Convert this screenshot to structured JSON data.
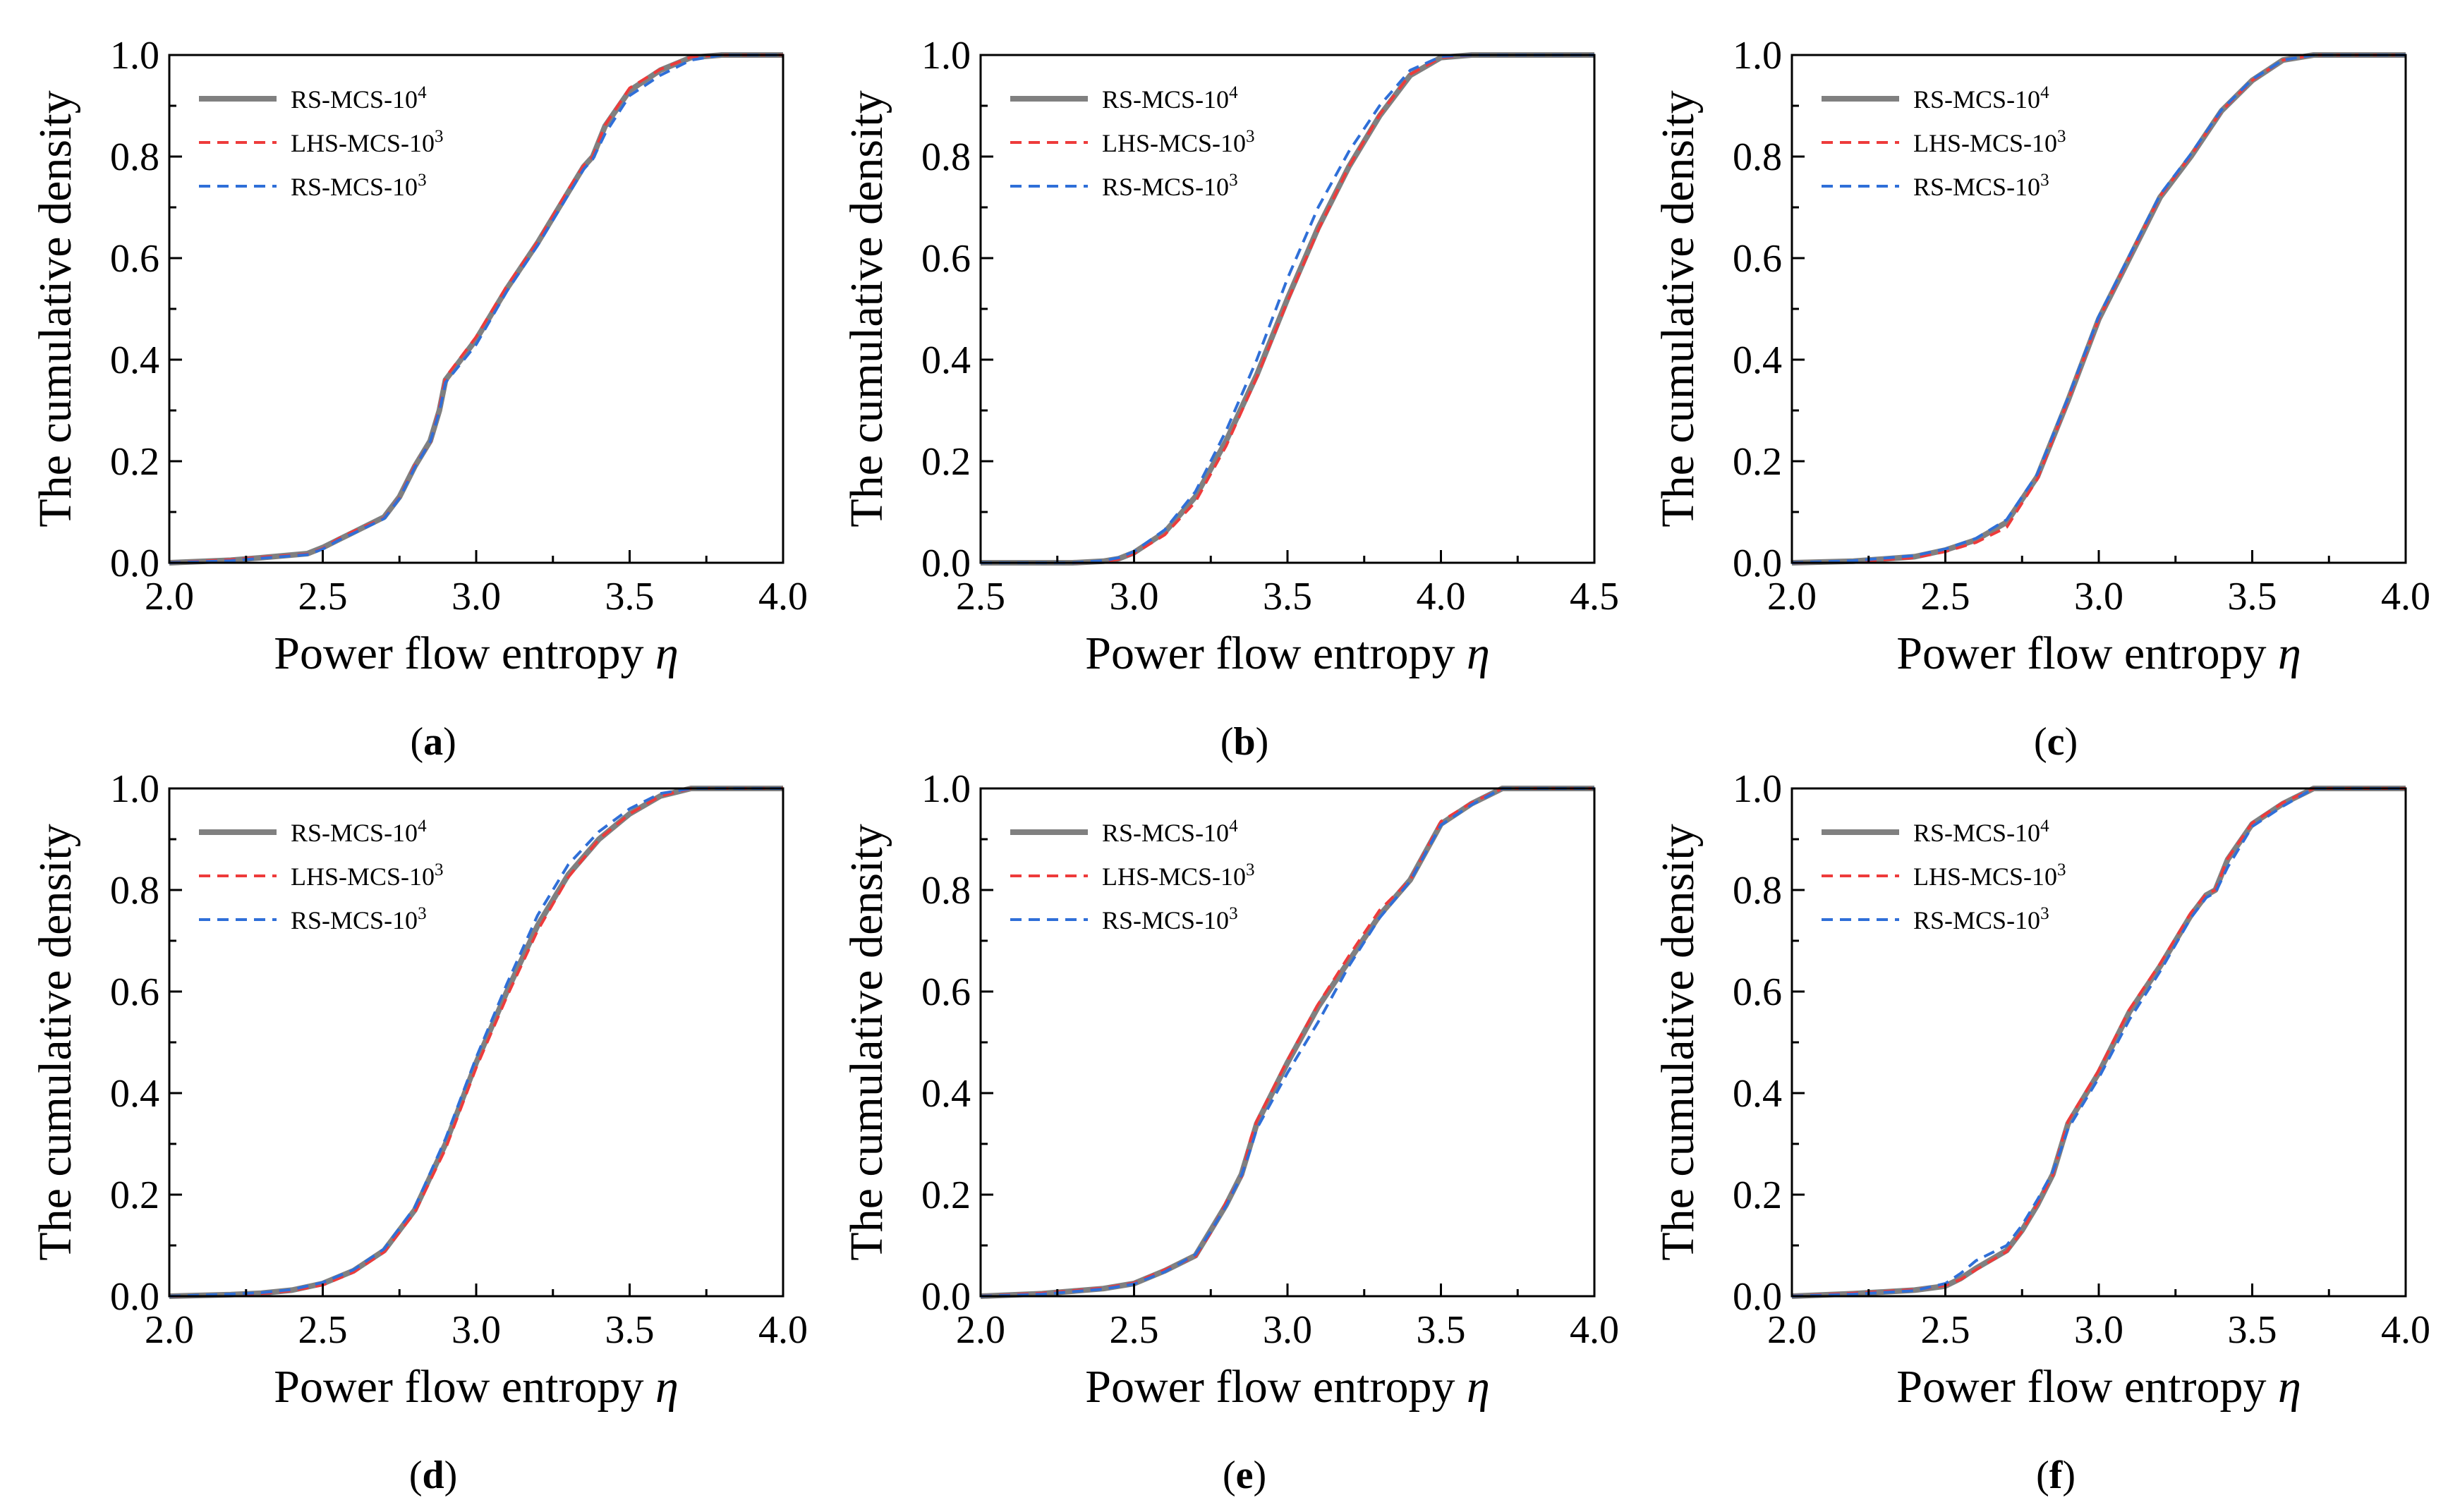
{
  "figure": {
    "legend": [
      {
        "label": "RS-MCS-10",
        "sup": "4",
        "color": "#808080",
        "style": "solid"
      },
      {
        "label": "LHS-MCS-10",
        "sup": "3",
        "color": "#ee3b3b",
        "style": "dashed"
      },
      {
        "label": "RS-MCS-10",
        "sup": "3",
        "color": "#2f6fd8",
        "style": "dashed"
      }
    ],
    "colors": {
      "series_a": "#808080",
      "series_b": "#ee3b3b",
      "series_c": "#2f6fd8"
    }
  },
  "chart_data": [
    {
      "type": "line",
      "panel": "a",
      "xlabel": "Power flow entropy",
      "xlabel_symbol": "η",
      "ylabel": "The cumulative density",
      "xlim": [
        2.0,
        4.0
      ],
      "ylim": [
        0.0,
        1.0
      ],
      "xticks": [
        "2.0",
        "2.5",
        "3.0",
        "3.5",
        "4.0"
      ],
      "yticks": [
        "0.0",
        "0.2",
        "0.4",
        "0.6",
        "0.8",
        "1.0"
      ],
      "series": [
        {
          "name": "RS-MCS-10^4",
          "x": [
            2.0,
            2.2,
            2.3,
            2.45,
            2.5,
            2.55,
            2.6,
            2.7,
            2.75,
            2.8,
            2.85,
            2.88,
            2.9,
            3.0,
            3.1,
            3.2,
            3.3,
            3.35,
            3.38,
            3.42,
            3.5,
            3.6,
            3.7,
            3.8,
            4.0
          ],
          "y": [
            0.0,
            0.005,
            0.01,
            0.018,
            0.03,
            0.045,
            0.06,
            0.09,
            0.13,
            0.19,
            0.24,
            0.3,
            0.36,
            0.44,
            0.54,
            0.63,
            0.73,
            0.78,
            0.8,
            0.86,
            0.93,
            0.97,
            0.995,
            1.0,
            1.0
          ]
        },
        {
          "name": "LHS-MCS-10^3",
          "x": [
            2.0,
            2.2,
            2.3,
            2.45,
            2.5,
            2.55,
            2.6,
            2.7,
            2.75,
            2.8,
            2.85,
            2.88,
            2.9,
            3.0,
            3.1,
            3.2,
            3.3,
            3.35,
            3.38,
            3.42,
            3.5,
            3.6,
            3.7,
            3.8,
            4.0
          ],
          "y": [
            0.0,
            0.006,
            0.011,
            0.017,
            0.028,
            0.047,
            0.062,
            0.088,
            0.128,
            0.192,
            0.236,
            0.305,
            0.365,
            0.445,
            0.545,
            0.632,
            0.735,
            0.782,
            0.8,
            0.862,
            0.935,
            0.972,
            0.996,
            1.0,
            1.0
          ]
        },
        {
          "name": "RS-MCS-10^3",
          "x": [
            2.0,
            2.2,
            2.3,
            2.45,
            2.5,
            2.55,
            2.6,
            2.7,
            2.75,
            2.8,
            2.85,
            2.88,
            2.9,
            3.0,
            3.1,
            3.2,
            3.3,
            3.35,
            3.38,
            3.42,
            3.5,
            3.6,
            3.7,
            3.8,
            4.0
          ],
          "y": [
            0.0,
            0.004,
            0.009,
            0.016,
            0.027,
            0.044,
            0.058,
            0.087,
            0.127,
            0.188,
            0.238,
            0.298,
            0.355,
            0.43,
            0.535,
            0.625,
            0.725,
            0.775,
            0.795,
            0.845,
            0.92,
            0.96,
            0.99,
            1.0,
            1.0
          ]
        }
      ]
    },
    {
      "type": "line",
      "panel": "b",
      "xlabel": "Power flow entropy",
      "xlabel_symbol": "η",
      "ylabel": "The cumulative density",
      "xlim": [
        2.5,
        4.5
      ],
      "ylim": [
        0.0,
        1.0
      ],
      "xticks": [
        "2.5",
        "3.0",
        "3.5",
        "4.0",
        "4.5"
      ],
      "yticks": [
        "0.0",
        "0.2",
        "0.4",
        "0.6",
        "0.8",
        "1.0"
      ],
      "series": [
        {
          "name": "RS-MCS-10^4",
          "x": [
            2.5,
            2.8,
            2.9,
            2.95,
            3.0,
            3.1,
            3.2,
            3.3,
            3.4,
            3.5,
            3.6,
            3.7,
            3.8,
            3.9,
            4.0,
            4.1,
            4.5
          ],
          "y": [
            0.0,
            0.0,
            0.003,
            0.008,
            0.02,
            0.06,
            0.13,
            0.24,
            0.37,
            0.52,
            0.66,
            0.78,
            0.88,
            0.96,
            0.995,
            1.0,
            1.0
          ]
        },
        {
          "name": "LHS-MCS-10^3",
          "x": [
            2.5,
            2.8,
            2.9,
            2.95,
            3.0,
            3.1,
            3.2,
            3.3,
            3.4,
            3.5,
            3.6,
            3.7,
            3.8,
            3.9,
            4.0,
            4.1,
            4.5
          ],
          "y": [
            0.0,
            0.0,
            0.002,
            0.007,
            0.018,
            0.055,
            0.12,
            0.23,
            0.365,
            0.515,
            0.655,
            0.78,
            0.882,
            0.962,
            0.995,
            1.0,
            1.0
          ]
        },
        {
          "name": "RS-MCS-10^3",
          "x": [
            2.5,
            2.8,
            2.9,
            2.95,
            3.0,
            3.1,
            3.2,
            3.3,
            3.4,
            3.5,
            3.6,
            3.7,
            3.8,
            3.9,
            4.0,
            4.1,
            4.5
          ],
          "y": [
            0.0,
            0.0,
            0.004,
            0.01,
            0.022,
            0.065,
            0.14,
            0.26,
            0.4,
            0.56,
            0.7,
            0.81,
            0.9,
            0.97,
            0.997,
            1.0,
            1.0
          ]
        }
      ]
    },
    {
      "type": "line",
      "panel": "c",
      "xlabel": "Power flow entropy",
      "xlabel_symbol": "η",
      "ylabel": "The cumulative density",
      "xlim": [
        2.0,
        4.0
      ],
      "ylim": [
        0.0,
        1.0
      ],
      "xticks": [
        "2.0",
        "2.5",
        "3.0",
        "3.5",
        "4.0"
      ],
      "yticks": [
        "0.0",
        "0.2",
        "0.4",
        "0.6",
        "0.8",
        "1.0"
      ],
      "series": [
        {
          "name": "RS-MCS-10^4",
          "x": [
            2.0,
            2.2,
            2.4,
            2.5,
            2.6,
            2.7,
            2.8,
            2.9,
            3.0,
            3.1,
            3.2,
            3.3,
            3.4,
            3.5,
            3.6,
            3.7,
            4.0
          ],
          "y": [
            0.0,
            0.003,
            0.012,
            0.025,
            0.045,
            0.08,
            0.17,
            0.32,
            0.48,
            0.6,
            0.72,
            0.8,
            0.89,
            0.95,
            0.99,
            1.0,
            1.0
          ]
        },
        {
          "name": "LHS-MCS-10^3",
          "x": [
            2.0,
            2.2,
            2.4,
            2.5,
            2.6,
            2.7,
            2.8,
            2.9,
            3.0,
            3.1,
            3.2,
            3.3,
            3.4,
            3.5,
            3.6,
            3.7,
            4.0
          ],
          "y": [
            0.0,
            0.002,
            0.01,
            0.022,
            0.04,
            0.07,
            0.165,
            0.32,
            0.48,
            0.602,
            0.722,
            0.802,
            0.89,
            0.95,
            0.99,
            1.0,
            1.0
          ]
        },
        {
          "name": "RS-MCS-10^3",
          "x": [
            2.0,
            2.2,
            2.4,
            2.5,
            2.6,
            2.7,
            2.8,
            2.9,
            3.0,
            3.1,
            3.2,
            3.3,
            3.4,
            3.5,
            3.6,
            3.7,
            4.0
          ],
          "y": [
            0.0,
            0.004,
            0.014,
            0.027,
            0.048,
            0.085,
            0.175,
            0.325,
            0.485,
            0.605,
            0.725,
            0.805,
            0.892,
            0.952,
            0.99,
            1.0,
            1.0
          ]
        }
      ]
    },
    {
      "type": "line",
      "panel": "d",
      "xlabel": "Power flow entropy",
      "xlabel_symbol": "η",
      "ylabel": "The cumulative density",
      "xlim": [
        2.0,
        4.0
      ],
      "ylim": [
        0.0,
        1.0
      ],
      "xticks": [
        "2.0",
        "2.5",
        "3.0",
        "3.5",
        "4.0"
      ],
      "yticks": [
        "0.0",
        "0.2",
        "0.4",
        "0.6",
        "0.8",
        "1.0"
      ],
      "series": [
        {
          "name": "RS-MCS-10^4",
          "x": [
            2.0,
            2.2,
            2.3,
            2.4,
            2.5,
            2.6,
            2.7,
            2.8,
            2.9,
            3.0,
            3.1,
            3.2,
            3.3,
            3.4,
            3.5,
            3.6,
            3.7,
            3.8,
            4.0
          ],
          "y": [
            0.0,
            0.003,
            0.006,
            0.012,
            0.025,
            0.05,
            0.09,
            0.17,
            0.3,
            0.46,
            0.6,
            0.73,
            0.83,
            0.9,
            0.95,
            0.985,
            1.0,
            1.0,
            1.0
          ]
        },
        {
          "name": "LHS-MCS-10^3",
          "x": [
            2.0,
            2.2,
            2.3,
            2.4,
            2.5,
            2.6,
            2.7,
            2.8,
            2.9,
            3.0,
            3.1,
            3.2,
            3.3,
            3.4,
            3.5,
            3.6,
            3.7,
            3.8,
            4.0
          ],
          "y": [
            0.0,
            0.002,
            0.005,
            0.011,
            0.022,
            0.047,
            0.087,
            0.165,
            0.29,
            0.45,
            0.59,
            0.72,
            0.825,
            0.9,
            0.95,
            0.985,
            1.0,
            1.0,
            1.0
          ]
        },
        {
          "name": "RS-MCS-10^3",
          "x": [
            2.0,
            2.2,
            2.3,
            2.4,
            2.5,
            2.6,
            2.7,
            2.8,
            2.9,
            3.0,
            3.1,
            3.2,
            3.3,
            3.4,
            3.5,
            3.6,
            3.7,
            3.8,
            4.0
          ],
          "y": [
            0.0,
            0.004,
            0.007,
            0.013,
            0.027,
            0.052,
            0.093,
            0.175,
            0.31,
            0.47,
            0.615,
            0.75,
            0.85,
            0.915,
            0.96,
            0.99,
            1.0,
            1.0,
            1.0
          ]
        }
      ]
    },
    {
      "type": "line",
      "panel": "e",
      "xlabel": "Power flow entropy",
      "xlabel_symbol": "η",
      "ylabel": "The cumulative density",
      "xlim": [
        2.0,
        4.0
      ],
      "ylim": [
        0.0,
        1.0
      ],
      "xticks": [
        "2.0",
        "2.5",
        "3.0",
        "3.5",
        "4.0"
      ],
      "yticks": [
        "0.0",
        "0.2",
        "0.4",
        "0.6",
        "0.8",
        "1.0"
      ],
      "series": [
        {
          "name": "RS-MCS-10^4",
          "x": [
            2.0,
            2.2,
            2.4,
            2.5,
            2.6,
            2.7,
            2.75,
            2.8,
            2.85,
            2.88,
            2.9,
            3.0,
            3.1,
            3.2,
            3.3,
            3.4,
            3.5,
            3.6,
            3.7,
            4.0
          ],
          "y": [
            0.0,
            0.005,
            0.015,
            0.025,
            0.05,
            0.08,
            0.13,
            0.18,
            0.24,
            0.3,
            0.34,
            0.46,
            0.57,
            0.66,
            0.75,
            0.82,
            0.93,
            0.97,
            1.0,
            1.0
          ]
        },
        {
          "name": "LHS-MCS-10^3",
          "x": [
            2.0,
            2.2,
            2.4,
            2.5,
            2.6,
            2.7,
            2.75,
            2.8,
            2.85,
            2.88,
            2.9,
            3.0,
            3.1,
            3.2,
            3.3,
            3.4,
            3.5,
            3.6,
            3.7,
            4.0
          ],
          "y": [
            0.0,
            0.006,
            0.016,
            0.026,
            0.052,
            0.078,
            0.125,
            0.185,
            0.235,
            0.31,
            0.345,
            0.465,
            0.575,
            0.67,
            0.76,
            0.82,
            0.935,
            0.972,
            1.0,
            1.0
          ]
        },
        {
          "name": "RS-MCS-10^3",
          "x": [
            2.0,
            2.2,
            2.4,
            2.5,
            2.6,
            2.7,
            2.75,
            2.8,
            2.85,
            2.88,
            2.9,
            3.0,
            3.1,
            3.2,
            3.3,
            3.4,
            3.5,
            3.6,
            3.7,
            4.0
          ],
          "y": [
            0.0,
            0.004,
            0.014,
            0.024,
            0.048,
            0.082,
            0.128,
            0.178,
            0.238,
            0.29,
            0.33,
            0.44,
            0.54,
            0.65,
            0.745,
            0.818,
            0.928,
            0.968,
            1.0,
            1.0
          ]
        }
      ]
    },
    {
      "type": "line",
      "panel": "f",
      "xlabel": "Power flow entropy",
      "xlabel_symbol": "η",
      "ylabel": "The cumulative density",
      "xlim": [
        2.0,
        4.0
      ],
      "ylim": [
        0.0,
        1.0
      ],
      "xticks": [
        "2.0",
        "2.5",
        "3.0",
        "3.5",
        "4.0"
      ],
      "yticks": [
        "0.0",
        "0.2",
        "0.4",
        "0.6",
        "0.8",
        "1.0"
      ],
      "series": [
        {
          "name": "RS-MCS-10^4",
          "x": [
            2.0,
            2.2,
            2.4,
            2.5,
            2.55,
            2.6,
            2.7,
            2.75,
            2.8,
            2.85,
            2.88,
            2.9,
            3.0,
            3.1,
            3.2,
            3.3,
            3.35,
            3.38,
            3.42,
            3.5,
            3.6,
            3.7,
            4.0
          ],
          "y": [
            0.0,
            0.005,
            0.012,
            0.02,
            0.035,
            0.055,
            0.09,
            0.13,
            0.18,
            0.24,
            0.3,
            0.34,
            0.44,
            0.56,
            0.65,
            0.75,
            0.79,
            0.8,
            0.86,
            0.93,
            0.97,
            1.0,
            1.0
          ]
        },
        {
          "name": "LHS-MCS-10^3",
          "x": [
            2.0,
            2.2,
            2.4,
            2.5,
            2.55,
            2.6,
            2.7,
            2.75,
            2.8,
            2.85,
            2.88,
            2.9,
            3.0,
            3.1,
            3.2,
            3.3,
            3.35,
            3.38,
            3.42,
            3.5,
            3.6,
            3.7,
            4.0
          ],
          "y": [
            0.0,
            0.006,
            0.013,
            0.021,
            0.033,
            0.052,
            0.088,
            0.128,
            0.182,
            0.238,
            0.305,
            0.345,
            0.445,
            0.565,
            0.655,
            0.755,
            0.792,
            0.8,
            0.862,
            0.932,
            0.972,
            1.0,
            1.0
          ]
        },
        {
          "name": "RS-MCS-10^3",
          "x": [
            2.0,
            2.2,
            2.4,
            2.5,
            2.55,
            2.6,
            2.7,
            2.75,
            2.8,
            2.85,
            2.88,
            2.9,
            3.0,
            3.1,
            3.2,
            3.3,
            3.35,
            3.38,
            3.42,
            3.5,
            3.6,
            3.7,
            4.0
          ],
          "y": [
            0.0,
            0.004,
            0.011,
            0.025,
            0.045,
            0.07,
            0.1,
            0.14,
            0.19,
            0.245,
            0.295,
            0.33,
            0.43,
            0.545,
            0.64,
            0.745,
            0.785,
            0.795,
            0.845,
            0.925,
            0.965,
            1.0,
            1.0
          ]
        }
      ]
    }
  ]
}
